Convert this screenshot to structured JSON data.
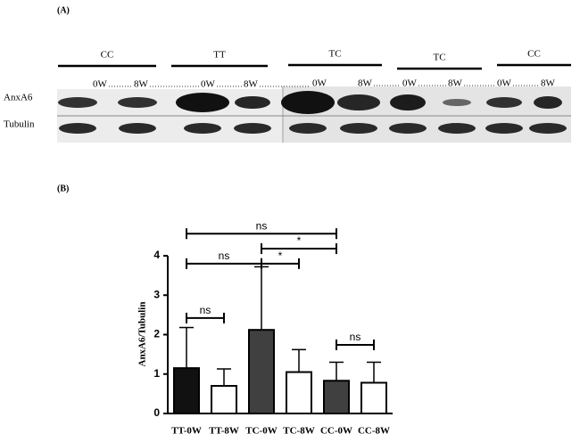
{
  "panel_a": {
    "label": "(A)",
    "groups": [
      "CC",
      "TT",
      "TC",
      "TC",
      "CC"
    ],
    "timepoints": [
      "0W",
      "8W",
      "0W",
      "8W",
      "0W",
      "8W",
      "0W",
      "8W",
      "0W",
      "8W"
    ],
    "rows": [
      "AnxA6",
      "Tubulin"
    ]
  },
  "panel_b": {
    "label": "(B)"
  },
  "chart_data": {
    "type": "bar",
    "y_label": "AnxA6/Tubulin",
    "categories": [
      "TT-0W",
      "TT-8W",
      "TC-0W",
      "TC-8W",
      "CC-0W",
      "CC-8W"
    ],
    "values": [
      1.15,
      0.7,
      2.12,
      1.05,
      0.83,
      0.78
    ],
    "errors": [
      1.03,
      0.43,
      1.6,
      0.57,
      0.47,
      0.52
    ],
    "colors": [
      "#111111",
      "#ffffff",
      "#404040",
      "#ffffff",
      "#404040",
      "#ffffff"
    ],
    "ylim": [
      0,
      4
    ],
    "yticks": [
      0,
      1,
      2,
      3,
      4
    ],
    "annotations": [
      {
        "text": "ns",
        "between": [
          "TT-0W",
          "CC-0W"
        ],
        "y": 4.56
      },
      {
        "text": "*",
        "between": [
          "TC-0W",
          "CC-0W"
        ],
        "y": 4.18
      },
      {
        "text": "ns",
        "between": [
          "TT-0W",
          "TC-0W"
        ],
        "y": 3.8
      },
      {
        "text": "*",
        "between": [
          "TC-0W",
          "TC-8W"
        ],
        "y": 3.8
      },
      {
        "text": "ns",
        "between": [
          "TT-0W",
          "TT-8W"
        ],
        "y": 2.42
      },
      {
        "text": "ns",
        "between": [
          "CC-0W",
          "CC-8W"
        ],
        "y": 1.74
      }
    ]
  }
}
